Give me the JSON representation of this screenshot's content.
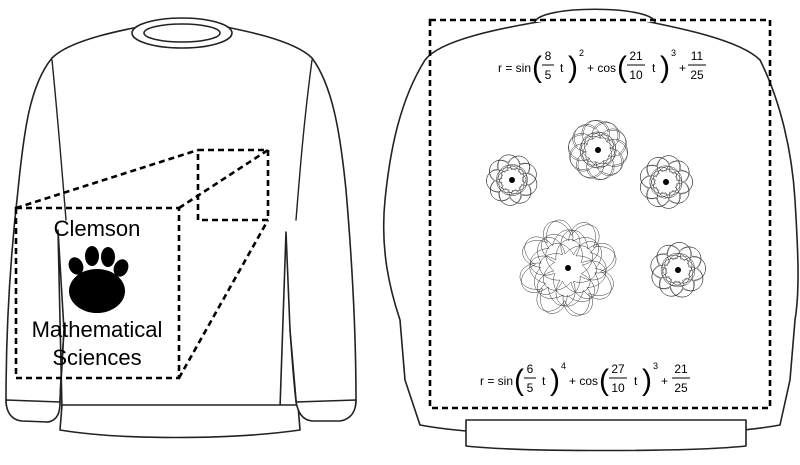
{
  "front_label": {
    "line1": "Clemson",
    "line2": "Mathematical",
    "line3": "Sciences"
  },
  "formula_top": {
    "prefix": "r = sin",
    "f1_num": "8",
    "f1_den": "5",
    "var1": "t",
    "exp1": "2",
    "mid": "+ cos",
    "f2_num": "21",
    "f2_den": "10",
    "var2": "t",
    "exp2": "3",
    "plus": "+",
    "f3_num": "11",
    "f3_den": "25"
  },
  "formula_bottom": {
    "prefix": "r = sin",
    "f1_num": "6",
    "f1_den": "5",
    "var1": "t",
    "exp1": "4",
    "mid": "+ cos",
    "f2_num": "27",
    "f2_den": "10",
    "var2": "t",
    "exp2": "3",
    "plus": "+",
    "f3_num": "21",
    "f3_den": "25"
  },
  "colors": {
    "ink": "#000000",
    "paper": "#ffffff",
    "line": "#222222"
  },
  "icons": {
    "logo": "tiger-paw-icon",
    "garment_front": "sweatshirt-front",
    "garment_back": "sweatshirt-back"
  }
}
